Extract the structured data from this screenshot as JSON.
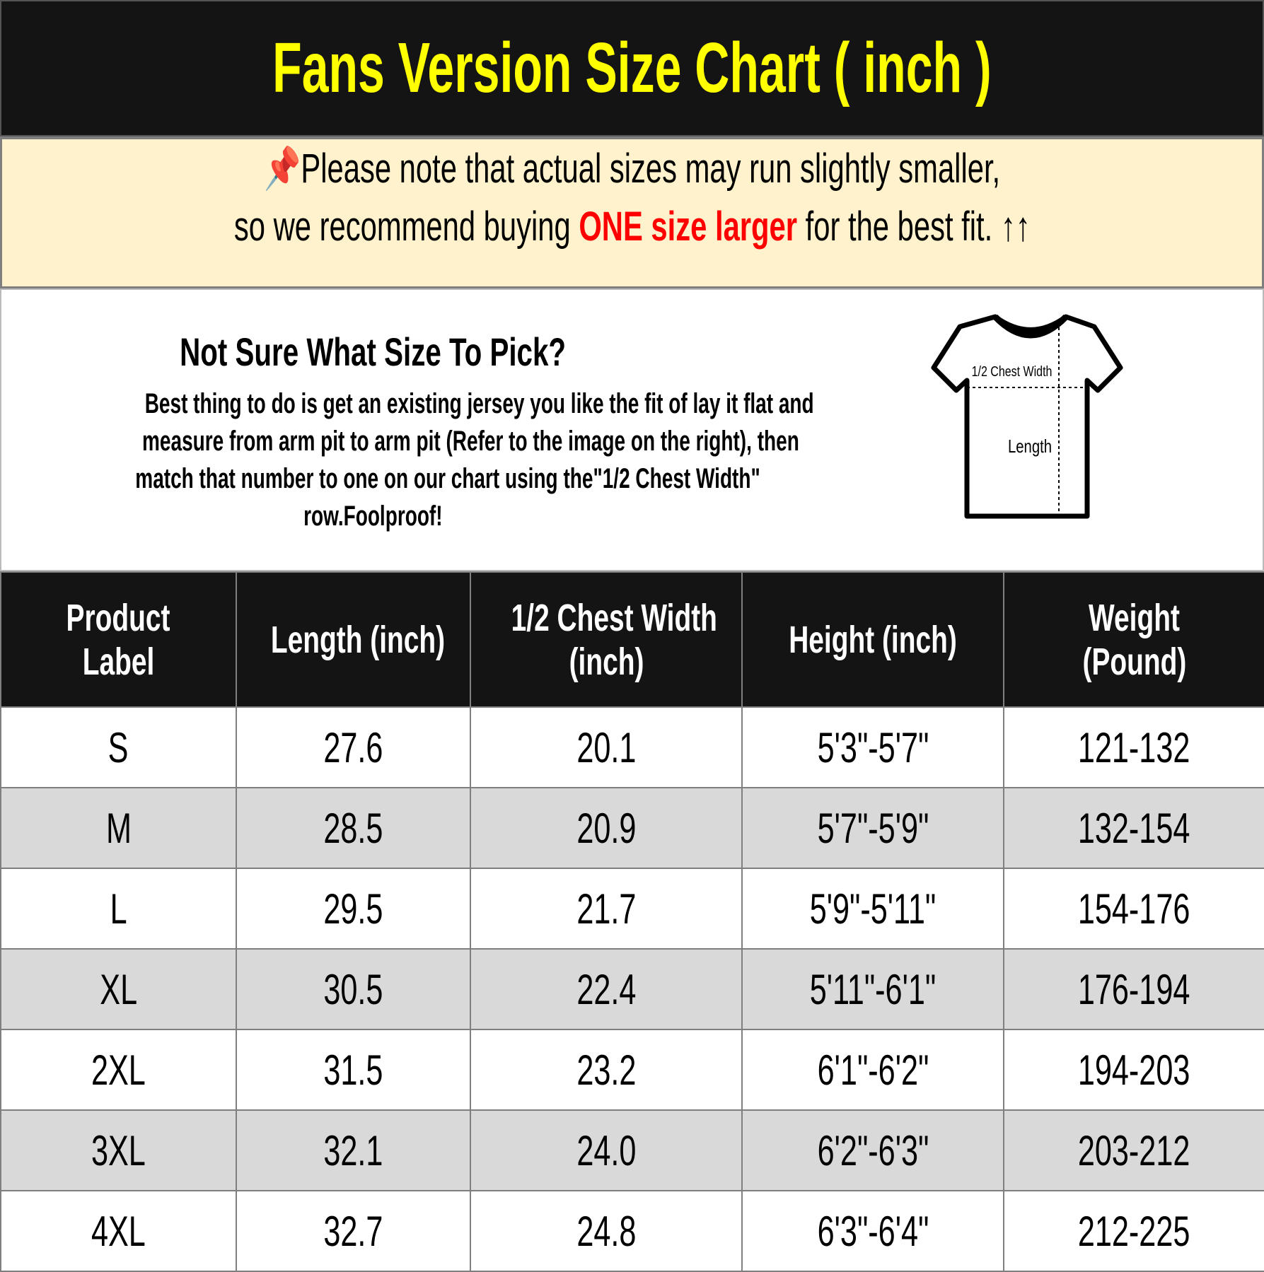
{
  "title": "Fans Version Size Chart ( inch )",
  "note": {
    "line1": "Please note that actual sizes may run slightly smaller,",
    "line2_pre": "so we recommend buying ",
    "line2_red": "ONE size larger",
    "line2_post": " for the best fit. ↑↑",
    "pin_icon": "pushpin-icon",
    "colors": {
      "highlight": "#ff0000",
      "background": "#fff2cc",
      "title": "#ffff00"
    }
  },
  "info": {
    "heading": "Not Sure What Size To Pick?",
    "lines": [
      "Best thing to do is get an existing jersey you like the fit of lay it flat and",
      "measure from arm pit to arm pit (Refer to the image on the right), then",
      "match that number to one on our chart using the\"1/2 Chest Width\"",
      "row.Foolproof!"
    ],
    "diagram": {
      "chest_label": "1/2 Chest Width",
      "length_label": "Length"
    }
  },
  "table": {
    "headers": [
      [
        "Product",
        "Label"
      ],
      [
        "Length (inch)"
      ],
      [
        "1/2 Chest Width",
        "(inch)"
      ],
      [
        "Height (inch)"
      ],
      [
        "Weight",
        "(Pound)"
      ]
    ],
    "rows": [
      [
        "S",
        "27.6",
        "20.1",
        "5'3\"-5'7\"",
        "121-132"
      ],
      [
        "M",
        "28.5",
        "20.9",
        "5'7\"-5'9\"",
        "132-154"
      ],
      [
        "L",
        "29.5",
        "21.7",
        "5'9\"-5'11\"",
        "154-176"
      ],
      [
        "XL",
        "30.5",
        "22.4",
        "5'11\"-6'1\"",
        "176-194"
      ],
      [
        "2XL",
        "31.5",
        "23.2",
        "6'1\"-6'2\"",
        "194-203"
      ],
      [
        "3XL",
        "32.1",
        "24.0",
        "6'2\"-6'3\"",
        "203-212"
      ],
      [
        "4XL",
        "32.7",
        "24.8",
        "6'3\"-6'4\"",
        "212-225"
      ]
    ]
  }
}
